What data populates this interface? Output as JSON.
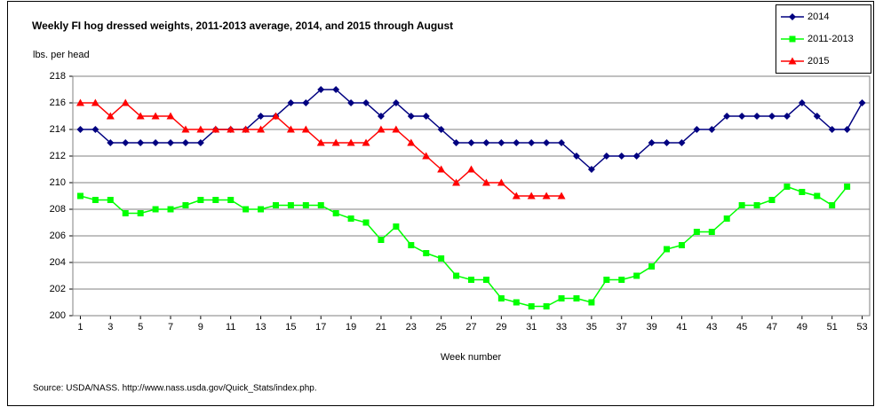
{
  "chart_data": {
    "type": "line",
    "title": "Weekly FI hog dressed weights, 2011-2013 average, 2014, and 2015 through August",
    "y_label": "lbs. per head",
    "x_label": "Week number",
    "source": "Source:  USDA/NASS.  http://www.nass.usda.gov/Quick_Stats/index.php.",
    "x": [
      1,
      2,
      3,
      4,
      5,
      6,
      7,
      8,
      9,
      10,
      11,
      12,
      13,
      14,
      15,
      16,
      17,
      18,
      19,
      20,
      21,
      22,
      23,
      24,
      25,
      26,
      27,
      28,
      29,
      30,
      31,
      32,
      33,
      34,
      35,
      36,
      37,
      38,
      39,
      40,
      41,
      42,
      43,
      44,
      45,
      46,
      47,
      48,
      49,
      50,
      51,
      52,
      53
    ],
    "xlim": [
      0.5,
      53.5
    ],
    "xticks": [
      1,
      3,
      5,
      7,
      9,
      11,
      13,
      15,
      17,
      19,
      21,
      23,
      25,
      27,
      29,
      31,
      33,
      35,
      37,
      39,
      41,
      43,
      45,
      47,
      49,
      51,
      53
    ],
    "ylim": [
      200,
      218
    ],
    "yticks": [
      200,
      202,
      204,
      206,
      208,
      210,
      212,
      214,
      216,
      218
    ],
    "grid": true,
    "legend": "top-right",
    "series": [
      {
        "name": "2014",
        "color": "#000080",
        "marker": "diamond",
        "values": [
          214,
          214,
          213,
          213,
          213,
          213,
          213,
          213,
          213,
          214,
          214,
          214,
          215,
          215,
          216,
          216,
          217,
          217,
          216,
          216,
          215,
          216,
          215,
          215,
          214,
          213,
          213,
          213,
          213,
          213,
          213,
          213,
          213,
          212,
          211,
          212,
          212,
          212,
          213,
          213,
          213,
          214,
          214,
          215,
          215,
          215,
          215,
          215,
          216,
          215,
          214,
          214,
          216
        ]
      },
      {
        "name": "2011-2013",
        "color": "#00ff00",
        "marker": "square",
        "values": [
          209,
          208.7,
          208.7,
          207.7,
          207.7,
          208,
          208,
          208.3,
          208.7,
          208.7,
          208.7,
          208,
          208,
          208.3,
          208.3,
          208.3,
          208.3,
          207.7,
          207.3,
          207,
          205.7,
          206.7,
          205.3,
          204.7,
          204.3,
          203,
          202.7,
          202.7,
          201.3,
          201,
          200.7,
          200.7,
          201.3,
          201.3,
          201,
          202.7,
          202.7,
          203,
          203.7,
          205,
          205.3,
          206.3,
          206.3,
          207.3,
          208.3,
          208.3,
          208.7,
          209.7,
          209.3,
          209,
          208.3,
          209.7,
          null
        ]
      },
      {
        "name": "2015",
        "color": "#ff0000",
        "marker": "triangle",
        "values": [
          216,
          216,
          215,
          216,
          215,
          215,
          215,
          214,
          214,
          214,
          214,
          214,
          214,
          215,
          214,
          214,
          213,
          213,
          213,
          213,
          214,
          214,
          213,
          212,
          211,
          210,
          211,
          210,
          210,
          209,
          209,
          209,
          209,
          null,
          null,
          null,
          null,
          null,
          null,
          null,
          null,
          null,
          null,
          null,
          null,
          null,
          null,
          null,
          null,
          null,
          null,
          null,
          null
        ]
      }
    ]
  }
}
